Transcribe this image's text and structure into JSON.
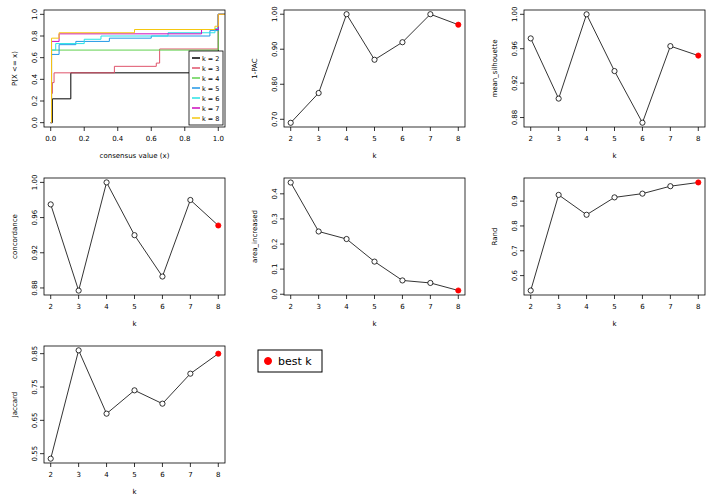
{
  "chart_data": [
    {
      "type": "line",
      "line_style": "step",
      "x_label": "consensus value (x)",
      "y_label": "P(X <= x)",
      "xlim": [
        -0.04,
        1.04
      ],
      "ylim": [
        -0.04,
        1.04
      ],
      "xticks": [
        {
          "value": 0,
          "label": "0.0"
        },
        {
          "value": 0.2,
          "label": "0.2"
        },
        {
          "value": 0.4,
          "label": "0.4"
        },
        {
          "value": 0.6,
          "label": "0.6"
        },
        {
          "value": 0.8,
          "label": "0.8"
        },
        {
          "value": 1,
          "label": "1.0"
        }
      ],
      "yticks": [
        {
          "value": 0,
          "label": "0.0"
        },
        {
          "value": 0.2,
          "label": "0.2"
        },
        {
          "value": 0.4,
          "label": "0.4"
        },
        {
          "value": 0.6,
          "label": "0.6"
        },
        {
          "value": 0.8,
          "label": "0.8"
        },
        {
          "value": 1,
          "label": "1.0"
        }
      ],
      "legend": "bottomright",
      "series": [
        {
          "name": "k = 2",
          "color": "#000000",
          "x": [
            0,
            0.01,
            0.12,
            1.0
          ],
          "values": [
            0,
            0.22,
            0.46,
            1.0
          ]
        },
        {
          "name": "k = 3",
          "color": "#df536b",
          "x": [
            0,
            0.005,
            0.01,
            0.02,
            0.38,
            0.63,
            0.65,
            1.0
          ],
          "values": [
            0,
            0.27,
            0.37,
            0.46,
            0.52,
            0.55,
            0.68,
            1.0
          ]
        },
        {
          "name": "k = 4",
          "color": "#61d04f",
          "x": [
            0,
            0.005,
            1.0
          ],
          "values": [
            0,
            0.67,
            1.0
          ]
        },
        {
          "name": "k = 5",
          "color": "#2297e6",
          "x": [
            0,
            0.005,
            0.05,
            0.15,
            0.35,
            0.6,
            0.95,
            1.0
          ],
          "values": [
            0,
            0.63,
            0.72,
            0.75,
            0.78,
            0.8,
            0.85,
            1.0
          ]
        },
        {
          "name": "k = 6",
          "color": "#28e2e5",
          "x": [
            0,
            0.005,
            0.03,
            0.2,
            0.3,
            0.7,
            0.98,
            1.0
          ],
          "values": [
            0,
            0.67,
            0.73,
            0.77,
            0.8,
            0.83,
            0.87,
            1.0
          ]
        },
        {
          "name": "k = 7",
          "color": "#cd0bbc",
          "x": [
            0,
            0.005,
            0.05,
            0.9,
            1.0
          ],
          "values": [
            0,
            0.75,
            0.82,
            0.86,
            1.0
          ]
        },
        {
          "name": "k = 8",
          "color": "#f5c710",
          "x": [
            0,
            0.005,
            0.05,
            0.5,
            0.98,
            1.0
          ],
          "values": [
            0,
            0.78,
            0.83,
            0.86,
            0.89,
            1.0
          ]
        }
      ]
    },
    {
      "type": "line",
      "marker": "circle",
      "color": "black",
      "x_label": "k",
      "y_label": "1-PAC",
      "x": [
        2,
        3,
        4,
        5,
        6,
        7,
        8
      ],
      "values": [
        0.69,
        0.775,
        1.0,
        0.87,
        0.92,
        1.0,
        0.97
      ],
      "colors": [
        "black",
        "black",
        "black",
        "black",
        "black",
        "black",
        "red"
      ],
      "xlim": [
        1.76,
        8.24
      ],
      "ylim": [
        0.678,
        1.012
      ],
      "xticks": [
        2,
        3,
        4,
        5,
        6,
        7,
        8
      ],
      "yticks": [
        {
          "value": 0.7,
          "label": "0.70"
        },
        {
          "value": 0.8,
          "label": "0.80"
        },
        {
          "value": 0.9,
          "label": "0.90"
        },
        {
          "value": 1,
          "label": "1.00"
        }
      ]
    },
    {
      "type": "line",
      "marker": "circle",
      "color": "black",
      "x_label": "k",
      "y_label": "mean_silhouette",
      "x": [
        2,
        3,
        4,
        5,
        6,
        7,
        8
      ],
      "values": [
        0.972,
        0.902,
        1.0,
        0.934,
        0.874,
        0.963,
        0.952
      ],
      "colors": [
        "black",
        "black",
        "black",
        "black",
        "black",
        "black",
        "red"
      ],
      "xlim": [
        1.76,
        8.24
      ],
      "ylim": [
        0.869,
        1.005
      ],
      "xticks": [
        2,
        3,
        4,
        5,
        6,
        7,
        8
      ],
      "yticks": [
        0.88,
        0.92,
        0.96,
        {
          "value": 1,
          "label": "1.00"
        }
      ]
    },
    {
      "type": "line",
      "marker": "circle",
      "color": "black",
      "x_label": "k",
      "y_label": "concordance",
      "x": [
        2,
        3,
        4,
        5,
        6,
        7,
        8
      ],
      "values": [
        0.975,
        0.877,
        1.0,
        0.94,
        0.893,
        0.98,
        0.951
      ],
      "colors": [
        "black",
        "black",
        "black",
        "black",
        "black",
        "black",
        "red"
      ],
      "xlim": [
        1.76,
        8.24
      ],
      "ylim": [
        0.872,
        1.005
      ],
      "xticks": [
        2,
        3,
        4,
        5,
        6,
        7,
        8
      ],
      "yticks": [
        0.88,
        0.92,
        0.96,
        {
          "value": 1,
          "label": "1.00"
        }
      ]
    },
    {
      "type": "line",
      "marker": "circle",
      "color": "black",
      "x_label": "k",
      "y_label": "area_increased",
      "x": [
        2,
        3,
        4,
        5,
        6,
        7,
        8
      ],
      "values": [
        0.445,
        0.25,
        0.22,
        0.13,
        0.055,
        0.045,
        0.015
      ],
      "colors": [
        "black",
        "black",
        "black",
        "black",
        "black",
        "black",
        "red"
      ],
      "xlim": [
        1.76,
        8.24
      ],
      "ylim": [
        -0.003,
        0.463
      ],
      "xticks": [
        2,
        3,
        4,
        5,
        6,
        7,
        8
      ],
      "yticks": [
        {
          "value": 0,
          "label": "0.0"
        },
        0.1,
        0.2,
        0.3,
        0.4
      ]
    },
    {
      "type": "line",
      "marker": "circle",
      "color": "black",
      "x_label": "k",
      "y_label": "Rand",
      "x": [
        2,
        3,
        4,
        5,
        6,
        7,
        8
      ],
      "values": [
        0.54,
        0.925,
        0.845,
        0.915,
        0.93,
        0.96,
        0.975
      ],
      "colors": [
        "black",
        "black",
        "black",
        "black",
        "black",
        "black",
        "red"
      ],
      "xlim": [
        1.76,
        8.24
      ],
      "ylim": [
        0.522,
        0.993
      ],
      "xticks": [
        2,
        3,
        4,
        5,
        6,
        7,
        8
      ],
      "yticks": [
        0.6,
        0.7,
        0.8,
        0.9
      ]
    },
    {
      "type": "line",
      "marker": "circle",
      "color": "black",
      "x_label": "k",
      "y_label": "Jaccard",
      "x": [
        2,
        3,
        4,
        5,
        6,
        7,
        8
      ],
      "values": [
        0.535,
        0.86,
        0.67,
        0.74,
        0.7,
        0.79,
        0.85
      ],
      "colors": [
        "black",
        "black",
        "black",
        "black",
        "black",
        "black",
        "red"
      ],
      "xlim": [
        1.76,
        8.24
      ],
      "ylim": [
        0.522,
        0.873
      ],
      "xticks": [
        2,
        3,
        4,
        5,
        6,
        7,
        8
      ],
      "yticks": [
        0.55,
        0.65,
        0.75,
        0.85
      ]
    },
    {
      "type": "legend",
      "series": [
        {
          "name": "best k",
          "color": "red",
          "marker": "circle"
        }
      ]
    }
  ]
}
